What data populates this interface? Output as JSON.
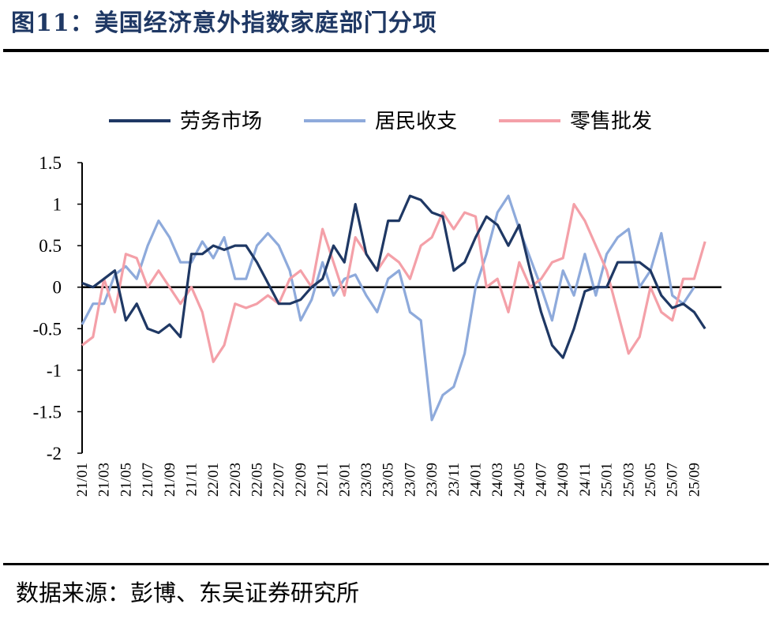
{
  "header": {
    "title": "图11：美国经济意外指数家庭部门分项"
  },
  "footer": {
    "source": "数据来源：彭博、东吴证券研究所"
  },
  "chart_data": {
    "type": "line",
    "title": "图11：美国经济意外指数家庭部门分项",
    "xlabel": "",
    "ylabel": "",
    "ylim": [
      -2,
      1.5
    ],
    "yticks": [
      "1.5",
      "1",
      "0.5",
      "0",
      "-0.5",
      "-1",
      "-1.5",
      "-2"
    ],
    "xticks": [
      "21/01",
      "21/03",
      "21/05",
      "21/07",
      "21/09",
      "21/11",
      "22/01",
      "22/03",
      "22/05",
      "22/07",
      "22/09",
      "22/11",
      "23/01",
      "23/03",
      "23/05",
      "23/07",
      "23/09",
      "23/11",
      "24/01",
      "24/03",
      "24/05",
      "24/07",
      "24/09",
      "24/11",
      "25/01",
      "25/03",
      "25/05",
      "25/07",
      "25/09"
    ],
    "legend_position": "top",
    "grid": false,
    "series": [
      {
        "name": "劳务市场",
        "color": "#1f3864",
        "points": [
          [
            "21/01",
            0.05
          ],
          [
            "21/02",
            0.0
          ],
          [
            "21/03",
            0.1
          ],
          [
            "21/04",
            0.2
          ],
          [
            "21/05",
            -0.4
          ],
          [
            "21/06",
            -0.2
          ],
          [
            "21/07",
            -0.5
          ],
          [
            "21/08",
            -0.55
          ],
          [
            "21/09",
            -0.45
          ],
          [
            "21/10",
            -0.6
          ],
          [
            "21/11",
            0.4
          ],
          [
            "21/12",
            0.4
          ],
          [
            "22/01",
            0.5
          ],
          [
            "22/02",
            0.45
          ],
          [
            "22/03",
            0.5
          ],
          [
            "22/04",
            0.5
          ],
          [
            "22/05",
            0.3
          ],
          [
            "22/06",
            0.05
          ],
          [
            "22/07",
            -0.2
          ],
          [
            "22/08",
            -0.2
          ],
          [
            "22/09",
            -0.15
          ],
          [
            "22/10",
            0.0
          ],
          [
            "22/11",
            0.1
          ],
          [
            "22/12",
            0.5
          ],
          [
            "23/01",
            0.3
          ],
          [
            "23/02",
            1.0
          ],
          [
            "23/03",
            0.4
          ],
          [
            "23/04",
            0.2
          ],
          [
            "23/05",
            0.8
          ],
          [
            "23/06",
            0.8
          ],
          [
            "23/07",
            1.1
          ],
          [
            "23/08",
            1.05
          ],
          [
            "23/09",
            0.9
          ],
          [
            "23/10",
            0.85
          ],
          [
            "23/11",
            0.2
          ],
          [
            "23/12",
            0.3
          ],
          [
            "24/01",
            0.6
          ],
          [
            "24/02",
            0.85
          ],
          [
            "24/03",
            0.75
          ],
          [
            "24/04",
            0.5
          ],
          [
            "24/05",
            0.75
          ],
          [
            "24/06",
            0.2
          ],
          [
            "24/07",
            -0.3
          ],
          [
            "24/08",
            -0.7
          ],
          [
            "24/09",
            -0.85
          ],
          [
            "24/10",
            -0.5
          ],
          [
            "24/11",
            -0.05
          ],
          [
            "24/12",
            0.0
          ],
          [
            "25/01",
            0.0
          ],
          [
            "25/02",
            0.3
          ],
          [
            "25/03",
            0.3
          ],
          [
            "25/04",
            0.3
          ],
          [
            "25/05",
            0.2
          ],
          [
            "25/06",
            -0.1
          ],
          [
            "25/07",
            -0.25
          ],
          [
            "25/08",
            -0.2
          ],
          [
            "25/09",
            -0.3
          ],
          [
            "25/10",
            -0.5
          ]
        ]
      },
      {
        "name": "居民收支",
        "color": "#8eaadb",
        "points": [
          [
            "21/01",
            -0.45
          ],
          [
            "21/02",
            -0.2
          ],
          [
            "21/03",
            -0.2
          ],
          [
            "21/04",
            0.15
          ],
          [
            "21/05",
            0.25
          ],
          [
            "21/06",
            0.1
          ],
          [
            "21/07",
            0.5
          ],
          [
            "21/08",
            0.8
          ],
          [
            "21/09",
            0.6
          ],
          [
            "21/10",
            0.3
          ],
          [
            "21/11",
            0.3
          ],
          [
            "21/12",
            0.55
          ],
          [
            "22/01",
            0.35
          ],
          [
            "22/02",
            0.6
          ],
          [
            "22/03",
            0.1
          ],
          [
            "22/04",
            0.1
          ],
          [
            "22/05",
            0.5
          ],
          [
            "22/06",
            0.65
          ],
          [
            "22/07",
            0.5
          ],
          [
            "22/08",
            0.2
          ],
          [
            "22/09",
            -0.4
          ],
          [
            "22/10",
            -0.15
          ],
          [
            "22/11",
            0.3
          ],
          [
            "22/12",
            -0.1
          ],
          [
            "23/01",
            0.1
          ],
          [
            "23/02",
            0.15
          ],
          [
            "23/03",
            -0.1
          ],
          [
            "23/04",
            -0.3
          ],
          [
            "23/05",
            0.1
          ],
          [
            "23/06",
            0.2
          ],
          [
            "23/07",
            -0.3
          ],
          [
            "23/08",
            -0.4
          ],
          [
            "23/09",
            -1.6
          ],
          [
            "23/10",
            -1.3
          ],
          [
            "23/11",
            -1.2
          ],
          [
            "23/12",
            -0.8
          ],
          [
            "24/01",
            0.0
          ],
          [
            "24/02",
            0.4
          ],
          [
            "24/03",
            0.9
          ],
          [
            "24/04",
            1.1
          ],
          [
            "24/05",
            0.7
          ],
          [
            "24/06",
            0.35
          ],
          [
            "24/07",
            0.0
          ],
          [
            "24/08",
            -0.4
          ],
          [
            "24/09",
            0.2
          ],
          [
            "24/10",
            -0.1
          ],
          [
            "24/11",
            0.4
          ],
          [
            "24/12",
            -0.1
          ],
          [
            "25/01",
            0.4
          ],
          [
            "25/02",
            0.6
          ],
          [
            "25/03",
            0.7
          ],
          [
            "25/04",
            0.0
          ],
          [
            "25/05",
            0.2
          ],
          [
            "25/06",
            0.65
          ],
          [
            "25/07",
            -0.1
          ],
          [
            "25/08",
            -0.2
          ],
          [
            "25/09",
            0.0
          ]
        ]
      },
      {
        "name": "零售批发",
        "color": "#f4a0a8",
        "points": [
          [
            "21/01",
            -0.7
          ],
          [
            "21/02",
            -0.6
          ],
          [
            "21/03",
            0.1
          ],
          [
            "21/04",
            -0.3
          ],
          [
            "21/05",
            0.4
          ],
          [
            "21/06",
            0.35
          ],
          [
            "21/07",
            0.0
          ],
          [
            "21/08",
            0.2
          ],
          [
            "21/09",
            0.0
          ],
          [
            "21/10",
            -0.2
          ],
          [
            "21/11",
            0.0
          ],
          [
            "21/12",
            -0.3
          ],
          [
            "22/01",
            -0.9
          ],
          [
            "22/02",
            -0.7
          ],
          [
            "22/03",
            -0.2
          ],
          [
            "22/04",
            -0.25
          ],
          [
            "22/05",
            -0.2
          ],
          [
            "22/06",
            -0.1
          ],
          [
            "22/07",
            -0.2
          ],
          [
            "22/08",
            0.1
          ],
          [
            "22/09",
            0.2
          ],
          [
            "22/10",
            0.0
          ],
          [
            "22/11",
            0.7
          ],
          [
            "22/12",
            0.3
          ],
          [
            "23/01",
            -0.1
          ],
          [
            "23/02",
            0.6
          ],
          [
            "23/03",
            0.4
          ],
          [
            "23/04",
            0.2
          ],
          [
            "23/05",
            0.4
          ],
          [
            "23/06",
            0.3
          ],
          [
            "23/07",
            0.1
          ],
          [
            "23/08",
            0.5
          ],
          [
            "23/09",
            0.6
          ],
          [
            "23/10",
            0.9
          ],
          [
            "23/11",
            0.7
          ],
          [
            "23/12",
            0.9
          ],
          [
            "24/01",
            0.85
          ],
          [
            "24/02",
            0.0
          ],
          [
            "24/03",
            0.1
          ],
          [
            "24/04",
            -0.3
          ],
          [
            "24/05",
            0.3
          ],
          [
            "24/06",
            0.0
          ],
          [
            "24/07",
            0.1
          ],
          [
            "24/08",
            0.3
          ],
          [
            "24/09",
            0.35
          ],
          [
            "24/10",
            1.0
          ],
          [
            "24/11",
            0.8
          ],
          [
            "24/12",
            0.5
          ],
          [
            "25/01",
            0.2
          ],
          [
            "25/02",
            -0.3
          ],
          [
            "25/03",
            -0.8
          ],
          [
            "25/04",
            -0.6
          ],
          [
            "25/05",
            0.0
          ],
          [
            "25/06",
            -0.3
          ],
          [
            "25/07",
            -0.4
          ],
          [
            "25/08",
            0.1
          ],
          [
            "25/09",
            0.1
          ],
          [
            "25/10",
            0.55
          ]
        ]
      }
    ]
  }
}
